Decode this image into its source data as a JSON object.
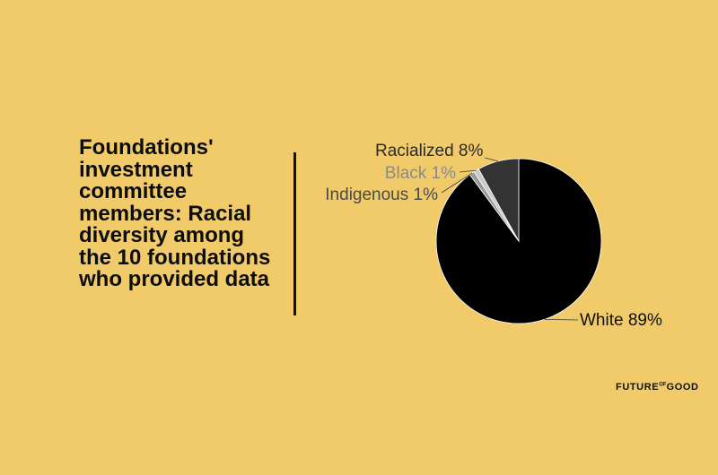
{
  "title": "Foundations' investment committee members: Racial diversity among the 10 foundations who provided data",
  "brand": {
    "part1": "FUTURE",
    "part2": "OF",
    "part3": "GOOD"
  },
  "chart_data": {
    "type": "pie",
    "slices": [
      {
        "label": "White",
        "value": 89,
        "display": "White 89%",
        "color": "#000000",
        "label_color": "#111111"
      },
      {
        "label": "Indigenous",
        "value": 1,
        "display": "Indigenous 1%",
        "color": "#9a9a9a",
        "label_color": "#4a4a4a"
      },
      {
        "label": "Black",
        "value": 1,
        "display": "Black 1%",
        "color": "#c9c9c9",
        "label_color": "#8a8a8a"
      },
      {
        "label": "Racialized",
        "value": 8,
        "display": "Racialized 8%",
        "color": "#333333",
        "label_color": "#2a2a2a"
      }
    ]
  }
}
